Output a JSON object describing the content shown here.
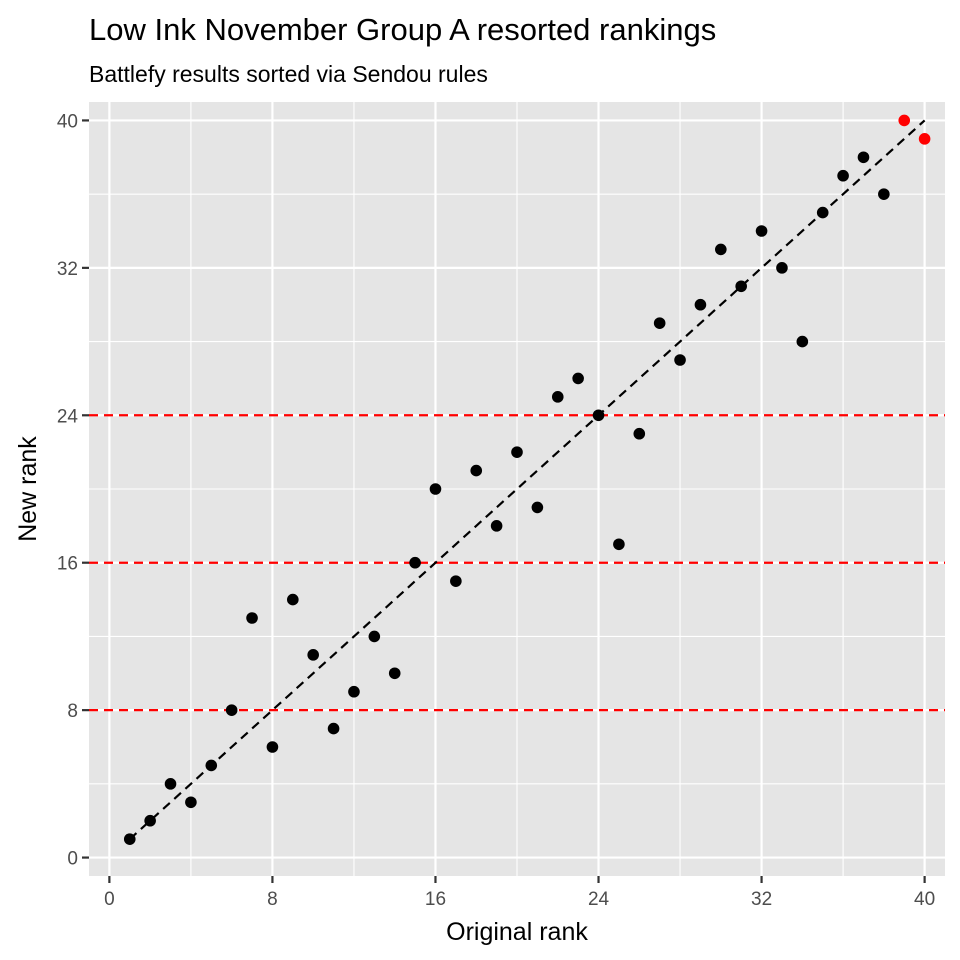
{
  "chart_data": {
    "type": "scatter",
    "title": "Low Ink November Group A resorted rankings",
    "subtitle": "Battlefy results sorted via Sendou rules",
    "xlabel": "Original rank",
    "ylabel": "New rank",
    "xlim": [
      -1,
      41
    ],
    "ylim": [
      -1,
      41
    ],
    "x_ticks": [
      0,
      8,
      16,
      24,
      32,
      40
    ],
    "y_ticks": [
      0,
      8,
      16,
      24,
      32,
      40
    ],
    "grid": true,
    "points": [
      {
        "x": 1,
        "y": 1
      },
      {
        "x": 2,
        "y": 2
      },
      {
        "x": 3,
        "y": 4
      },
      {
        "x": 4,
        "y": 3
      },
      {
        "x": 5,
        "y": 5
      },
      {
        "x": 6,
        "y": 8
      },
      {
        "x": 7,
        "y": 13
      },
      {
        "x": 8,
        "y": 6
      },
      {
        "x": 9,
        "y": 14
      },
      {
        "x": 10,
        "y": 11
      },
      {
        "x": 11,
        "y": 7
      },
      {
        "x": 12,
        "y": 9
      },
      {
        "x": 13,
        "y": 12
      },
      {
        "x": 14,
        "y": 10
      },
      {
        "x": 15,
        "y": 16
      },
      {
        "x": 16,
        "y": 20
      },
      {
        "x": 17,
        "y": 15
      },
      {
        "x": 18,
        "y": 21
      },
      {
        "x": 19,
        "y": 18
      },
      {
        "x": 20,
        "y": 22
      },
      {
        "x": 21,
        "y": 19
      },
      {
        "x": 22,
        "y": 25
      },
      {
        "x": 23,
        "y": 26
      },
      {
        "x": 24,
        "y": 24
      },
      {
        "x": 25,
        "y": 17
      },
      {
        "x": 26,
        "y": 23
      },
      {
        "x": 27,
        "y": 29
      },
      {
        "x": 28,
        "y": 27
      },
      {
        "x": 29,
        "y": 30
      },
      {
        "x": 30,
        "y": 33
      },
      {
        "x": 31,
        "y": 31
      },
      {
        "x": 32,
        "y": 34
      },
      {
        "x": 33,
        "y": 32
      },
      {
        "x": 34,
        "y": 28
      },
      {
        "x": 35,
        "y": 35
      },
      {
        "x": 36,
        "y": 37
      },
      {
        "x": 37,
        "y": 38
      },
      {
        "x": 38,
        "y": 36
      },
      {
        "x": 39,
        "y": 40,
        "highlight": true
      },
      {
        "x": 40,
        "y": 39,
        "highlight": true
      }
    ],
    "reference_line": {
      "from": [
        1,
        1
      ],
      "to": [
        40,
        40
      ],
      "color": "#000000",
      "style": "dashed"
    },
    "hlines": [
      8,
      16,
      24
    ],
    "hline_color": "#ff0000",
    "point_color": "#000000",
    "highlight_color": "#ff0000",
    "panel_background": "#e5e5e5",
    "grid_color": "#ffffff"
  }
}
